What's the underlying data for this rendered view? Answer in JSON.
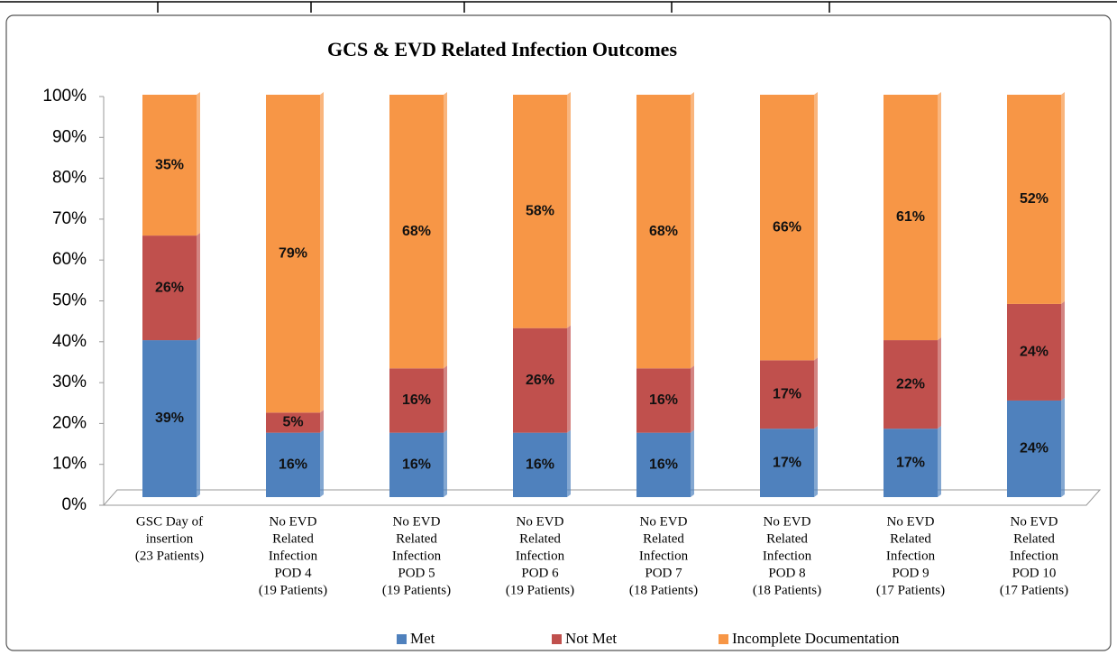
{
  "chart_data": {
    "type": "stacked_bar",
    "title": "GCS & EVD Related Infection Outcomes",
    "categories": [
      [
        "GSC Day of",
        "insertion",
        "(23 Patients)"
      ],
      [
        "No EVD",
        "Related",
        "Infection",
        "POD 4",
        "(19 Patients)"
      ],
      [
        "No EVD",
        "Related",
        "Infection",
        "POD 5",
        "(19 Patients)"
      ],
      [
        "No EVD",
        "Related",
        "Infection",
        "POD 6",
        "(19 Patients)"
      ],
      [
        "No EVD",
        "Related",
        "Infection",
        "POD 7",
        "(18 Patients)"
      ],
      [
        "No EVD",
        "Related",
        "Infection",
        "POD 8",
        "(18 Patients)"
      ],
      [
        "No EVD",
        "Related",
        "Infection",
        "POD 9",
        "(17 Patients)"
      ],
      [
        "No EVD",
        "Related",
        "Infection",
        "POD 10",
        "(17 Patients)"
      ]
    ],
    "series": [
      {
        "name": "Met",
        "color": "#4f81bd",
        "values": [
          39,
          16,
          16,
          16,
          16,
          17,
          17,
          24
        ],
        "value_labels": [
          "39%",
          "16%",
          "16%",
          "16%",
          "16%",
          "17%",
          "17%",
          "24%"
        ]
      },
      {
        "name": "Not Met",
        "color": "#c0504d",
        "values": [
          26,
          5,
          16,
          26,
          16,
          17,
          22,
          24
        ],
        "value_labels": [
          "26%",
          "5%",
          "16%",
          "26%",
          "16%",
          "17%",
          "22%",
          "24%"
        ]
      },
      {
        "name": "Incomplete Documentation",
        "color": "#f79646",
        "values": [
          35,
          79,
          68,
          58,
          68,
          66,
          61,
          52
        ],
        "value_labels": [
          "35%",
          "79%",
          "68%",
          "58%",
          "68%",
          "66%",
          "61%",
          "52%"
        ]
      }
    ],
    "ylim": [
      0,
      100
    ],
    "yticks": [
      {
        "value": 0,
        "label": "0%"
      },
      {
        "value": 10,
        "label": "10%"
      },
      {
        "value": 20,
        "label": "20%"
      },
      {
        "value": 30,
        "label": "30%"
      },
      {
        "value": 40,
        "label": "40%"
      },
      {
        "value": 50,
        "label": "50%"
      },
      {
        "value": 60,
        "label": "60%"
      },
      {
        "value": 70,
        "label": "70%"
      },
      {
        "value": 80,
        "label": "80%"
      },
      {
        "value": 90,
        "label": "90%"
      },
      {
        "value": 100,
        "label": "100%"
      }
    ],
    "grid": false,
    "legend": "bottom"
  }
}
